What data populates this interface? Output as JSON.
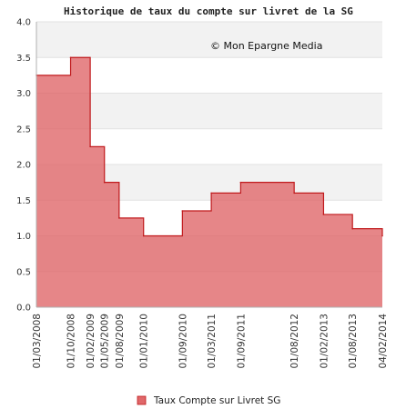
{
  "chart_data": {
    "type": "area",
    "step": true,
    "title": "Historique de taux du compte sur livret de la SG",
    "annotation": "© Mon Epargne Media",
    "xlabel": "",
    "ylabel": "",
    "ylim": [
      0,
      4
    ],
    "yticks": [
      "0.0",
      "0.5",
      "1.0",
      "1.5",
      "2.0",
      "2.5",
      "3.0",
      "3.5",
      "4.0"
    ],
    "xlim": [
      "2008-03-01",
      "2014-02-04"
    ],
    "xticks": [
      "01/03/2008",
      "01/10/2008",
      "01/02/2009",
      "01/05/2009",
      "01/08/2009",
      "01/01/2010",
      "01/09/2010",
      "01/03/2011",
      "01/09/2011",
      "01/08/2012",
      "01/02/2013",
      "01/08/2013",
      "04/02/2014"
    ],
    "grid": true,
    "legend_position": "bottom",
    "colors": {
      "fill": "#e0686a",
      "line": "#c0191c",
      "band": "#f2f2f2"
    },
    "series": [
      {
        "name": "Taux Compte sur Livret SG",
        "points": [
          {
            "x": "2008-03-01",
            "y": 3.25
          },
          {
            "x": "2008-10-01",
            "y": 3.5
          },
          {
            "x": "2009-02-01",
            "y": 2.25
          },
          {
            "x": "2009-05-01",
            "y": 1.75
          },
          {
            "x": "2009-08-01",
            "y": 1.25
          },
          {
            "x": "2010-01-01",
            "y": 1.0
          },
          {
            "x": "2010-09-01",
            "y": 1.35
          },
          {
            "x": "2011-03-01",
            "y": 1.6
          },
          {
            "x": "2011-09-01",
            "y": 1.75
          },
          {
            "x": "2012-08-01",
            "y": 1.6
          },
          {
            "x": "2013-02-01",
            "y": 1.3
          },
          {
            "x": "2013-08-01",
            "y": 1.1
          },
          {
            "x": "2014-02-04",
            "y": 1.0
          }
        ]
      }
    ]
  }
}
